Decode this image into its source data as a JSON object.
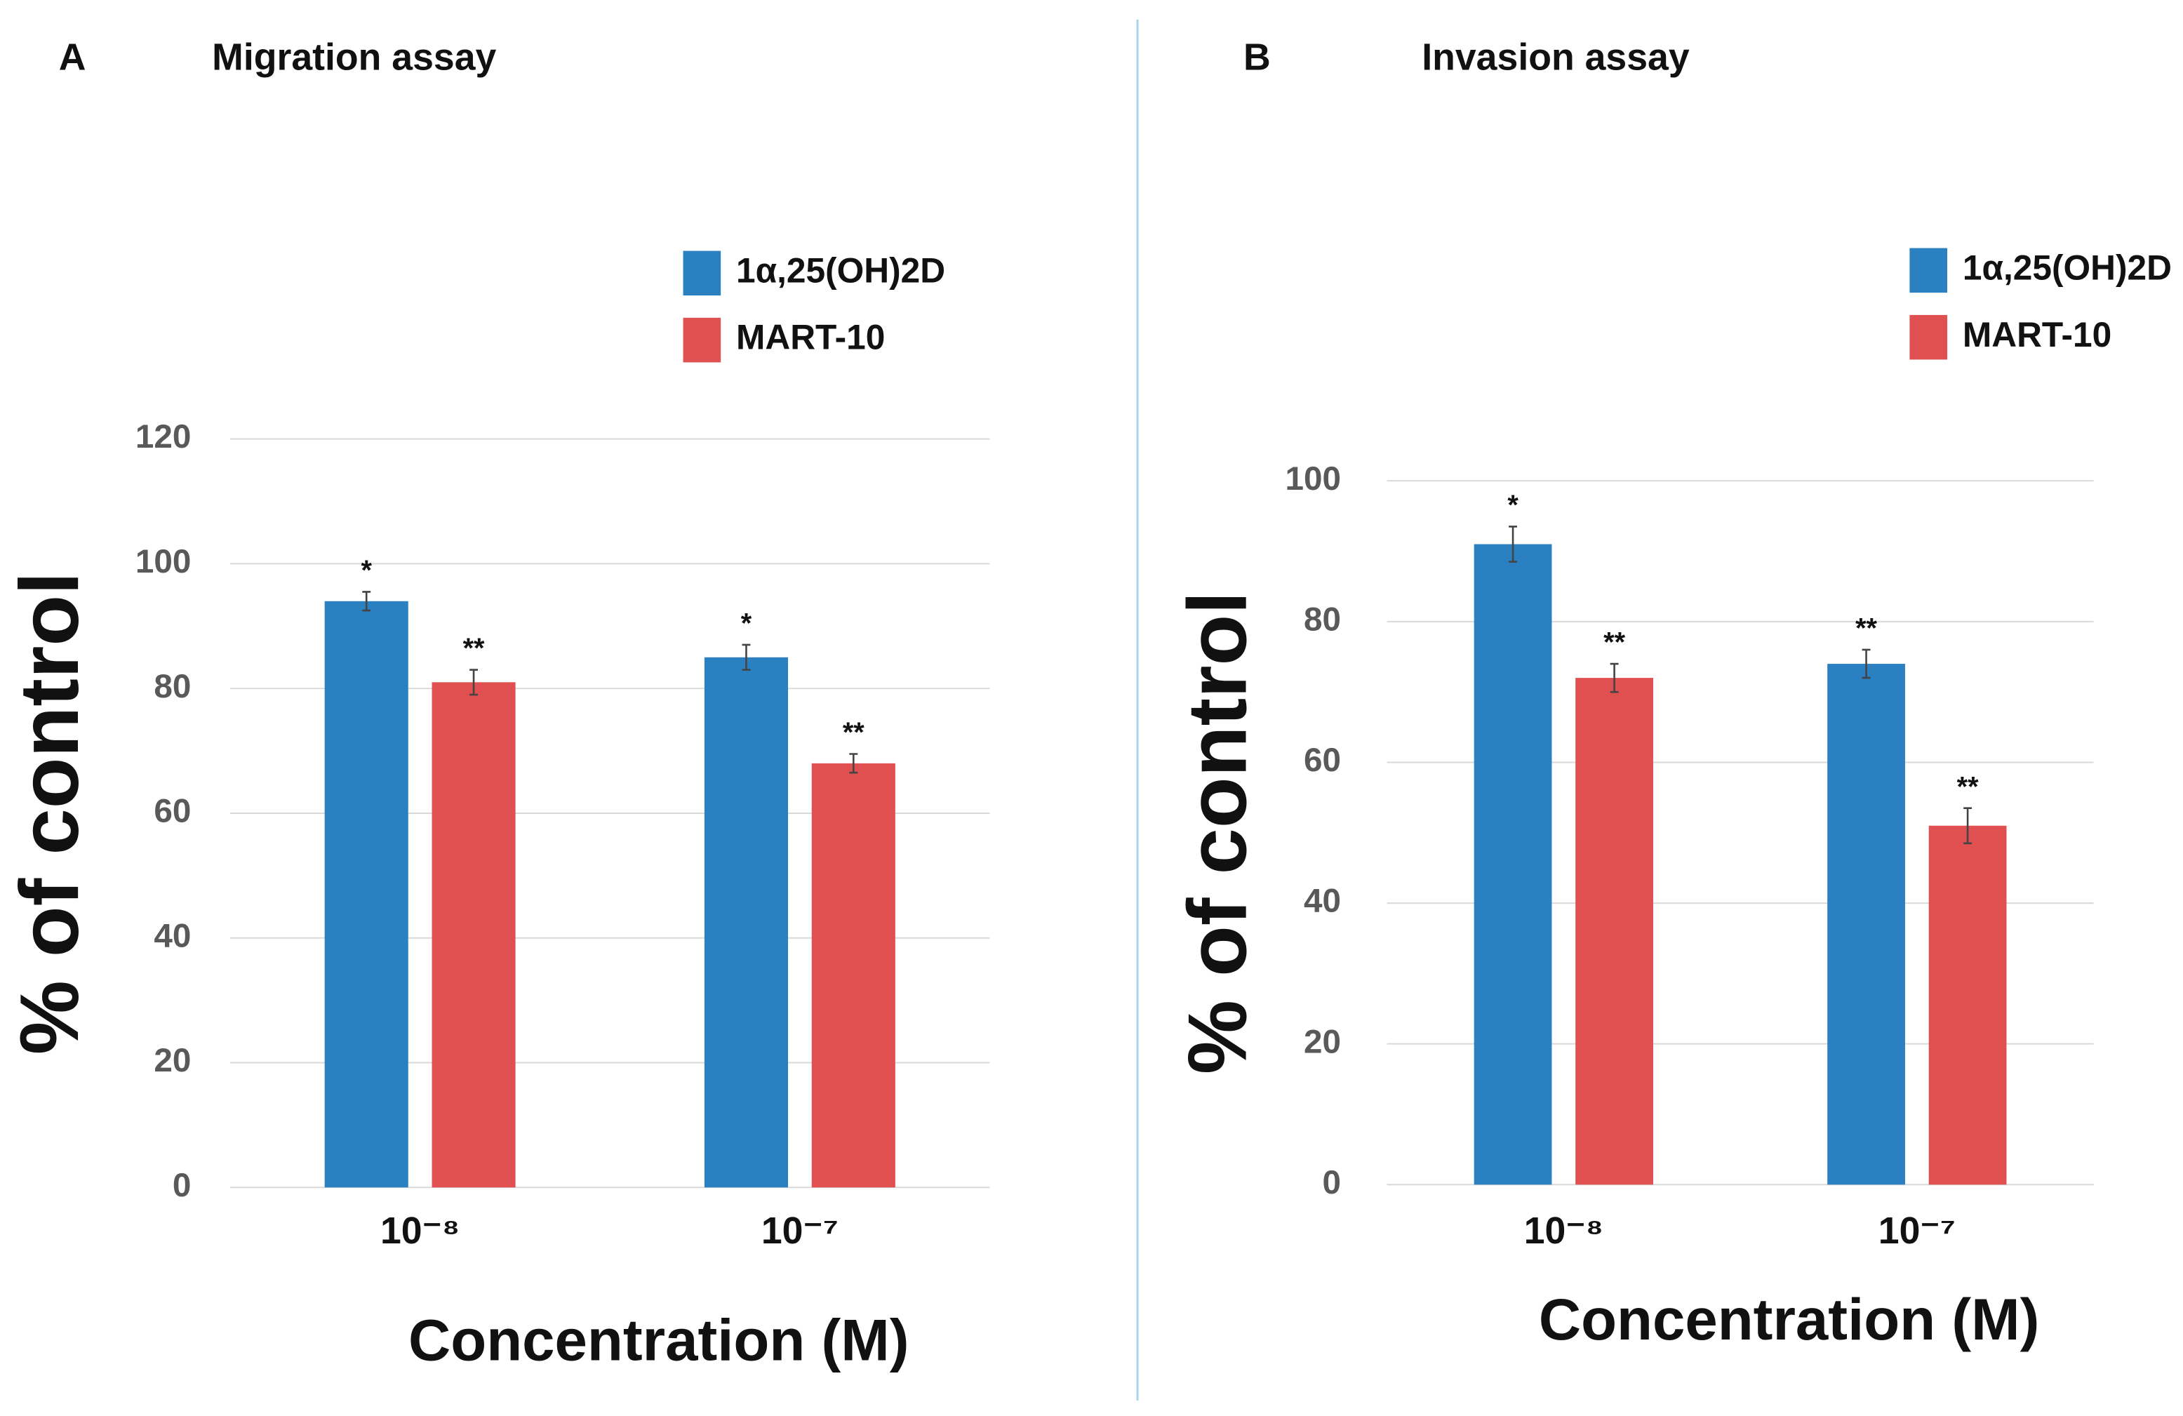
{
  "chart_data": [
    {
      "type": "bar",
      "panel": "A",
      "title": "Migration assay",
      "categories": [
        "10⁻⁸",
        "10⁻⁷"
      ],
      "series": [
        {
          "name": "1α,25(OH)2D",
          "color": "#2a80c1",
          "values": [
            94,
            85
          ],
          "errors": [
            1.5,
            2
          ],
          "significance": [
            "*",
            "*"
          ]
        },
        {
          "name": "MART-10",
          "color": "#e05050",
          "values": [
            81,
            68
          ],
          "errors": [
            2,
            1.5
          ],
          "significance": [
            "**",
            "**"
          ]
        }
      ],
      "ylim": [
        0,
        120
      ],
      "yticks": [
        0,
        20,
        40,
        60,
        80,
        100,
        120
      ],
      "grid": true,
      "y_label": "% of control",
      "x_label": "Concentration (M)"
    },
    {
      "type": "bar",
      "panel": "B",
      "title": "Invasion assay",
      "categories": [
        "10⁻⁸",
        "10⁻⁷"
      ],
      "series": [
        {
          "name": "1α,25(OH)2D",
          "color": "#2a80c1",
          "values": [
            91,
            74
          ],
          "errors": [
            2.5,
            2
          ],
          "significance": [
            "*",
            "**"
          ]
        },
        {
          "name": "MART-10",
          "color": "#e05050",
          "values": [
            72,
            51
          ],
          "errors": [
            2,
            2.5
          ],
          "significance": [
            "**",
            "**"
          ]
        }
      ],
      "ylim": [
        0,
        100
      ],
      "yticks": [
        0,
        20,
        40,
        60,
        80,
        100
      ],
      "grid": true,
      "y_label": "% of control",
      "x_label": "Concentration (M)"
    }
  ]
}
